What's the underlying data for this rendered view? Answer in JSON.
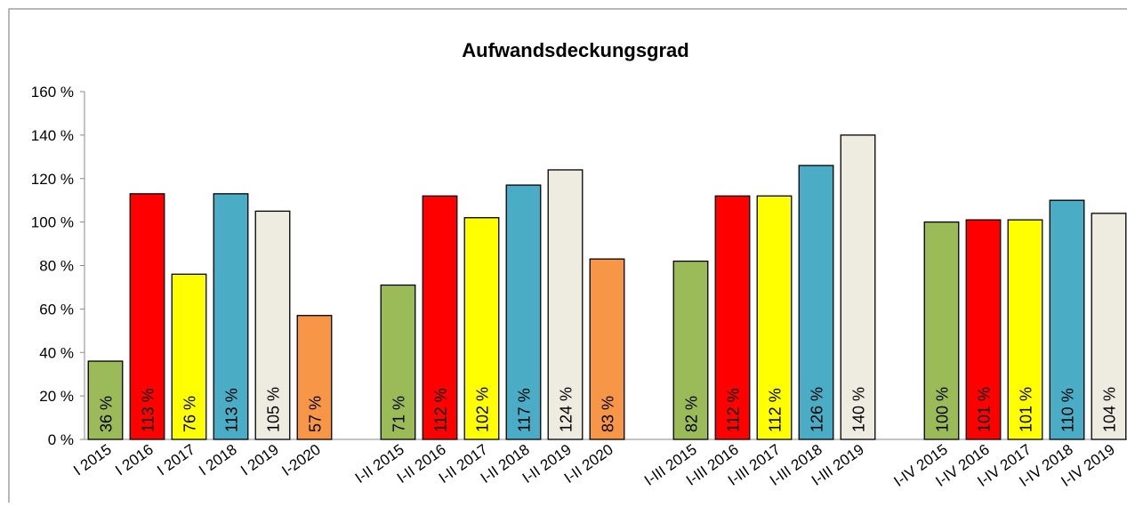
{
  "chart_data": {
    "type": "bar",
    "title": "Aufwandsdeckungsgrad",
    "categories": [
      "I 2015",
      "I 2016",
      "I 2017",
      "I 2018",
      "I 2019",
      "I-2020",
      null,
      "I-II 2015",
      "I-II 2016",
      "I-II 2017",
      "I-II 2018",
      "I-II 2019",
      "I-II 2020",
      null,
      "I-III 2015",
      "I-III 2016",
      "I-III 2017",
      "I-III 2018",
      "I-III 2019",
      null,
      "I-IV 2015",
      "I-IV 2016",
      "I-IV 2017",
      "I-IV 2018",
      "I-IV 2019"
    ],
    "values": [
      36,
      113,
      76,
      113,
      105,
      57,
      null,
      71,
      112,
      102,
      117,
      124,
      83,
      null,
      82,
      112,
      112,
      126,
      140,
      null,
      100,
      101,
      101,
      110,
      104
    ],
    "value_labels": [
      "36 %",
      "113 %",
      "76 %",
      "113 %",
      "105 %",
      "57 %",
      null,
      "71 %",
      "112 %",
      "102 %",
      "117 %",
      "124 %",
      "83 %",
      null,
      "82 %",
      "112 %",
      "112 %",
      "126 %",
      "140 %",
      null,
      "100 %",
      "101 %",
      "101 %",
      "110 %",
      "104 %"
    ],
    "colors": [
      "#9bbb59",
      "#ff0000",
      "#ffff00",
      "#4bacc6",
      "#eeece1",
      "#f79646",
      null,
      "#9bbb59",
      "#ff0000",
      "#ffff00",
      "#4bacc6",
      "#eeece1",
      "#f79646",
      null,
      "#9bbb59",
      "#ff0000",
      "#ffff00",
      "#4bacc6",
      "#eeece1",
      null,
      "#9bbb59",
      "#ff0000",
      "#ffff00",
      "#4bacc6",
      "#eeece1"
    ],
    "ylim": [
      0,
      160
    ],
    "yticks": [
      {
        "value": 0,
        "label": "0 %"
      },
      {
        "value": 20,
        "label": "20 %"
      },
      {
        "value": 40,
        "label": "40 %"
      },
      {
        "value": 60,
        "label": "60 %"
      },
      {
        "value": 80,
        "label": "80 %"
      },
      {
        "value": 100,
        "label": "100 %"
      },
      {
        "value": 120,
        "label": "120 %"
      },
      {
        "value": 140,
        "label": "140 %"
      },
      {
        "value": 160,
        "label": "160 %"
      }
    ]
  }
}
